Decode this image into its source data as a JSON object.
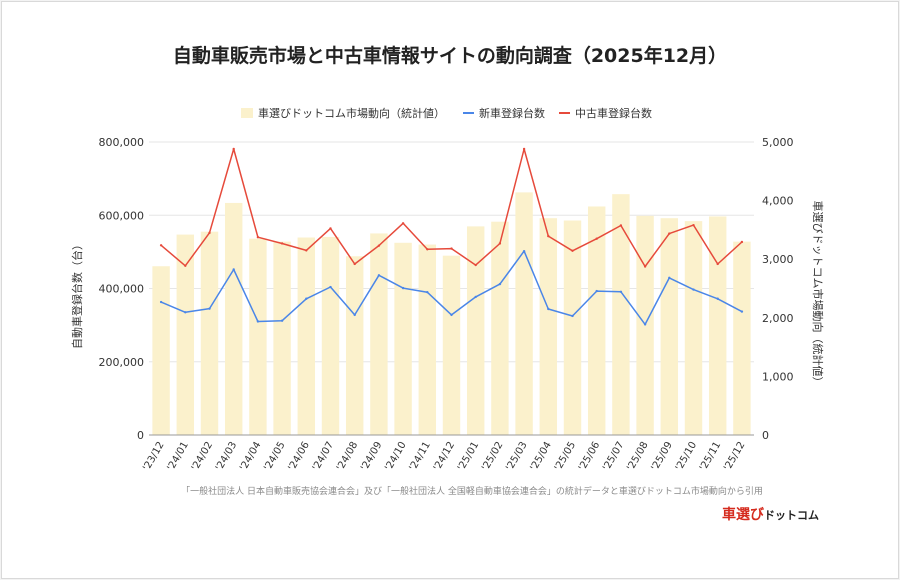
{
  "chart_data": {
    "type": "bar+line",
    "title": "自動車販売市場と中古車情報サイトの動向調査（2025年12月）",
    "categories": [
      "'23/12",
      "'24/01",
      "'24/02",
      "'24/03",
      "'24/04",
      "'24/05",
      "'24/06",
      "'24/07",
      "'24/08",
      "'24/09",
      "'24/10",
      "'24/11",
      "'24/12",
      "'25/01",
      "'25/02",
      "'25/03",
      "'25/04",
      "'25/05",
      "'25/06",
      "'25/07",
      "'25/08",
      "'25/09",
      "'25/10",
      "'25/11",
      "'25/12"
    ],
    "series": [
      {
        "name": "車選びドットコム市場動向（統計値）",
        "kind": "bar",
        "axis": "right",
        "color": "#fbf1cc",
        "values": [
          2880,
          3420,
          3470,
          3960,
          3350,
          3300,
          3370,
          3380,
          3050,
          3440,
          3280,
          3250,
          3060,
          3560,
          3640,
          4140,
          3700,
          3660,
          3900,
          4110,
          3740,
          3700,
          3650,
          3730,
          3300
        ]
      },
      {
        "name": "新車登録台数",
        "kind": "line",
        "axis": "left",
        "color": "#4a86e8",
        "values": [
          363000,
          335000,
          345000,
          452000,
          310000,
          312000,
          372000,
          404000,
          328000,
          436000,
          401000,
          390000,
          328000,
          377000,
          412000,
          502000,
          344000,
          325000,
          393000,
          391000,
          302000,
          429000,
          397000,
          372000,
          337000
        ]
      },
      {
        "name": "中古車登録台数",
        "kind": "line",
        "axis": "left",
        "color": "#e64a3b",
        "values": [
          518000,
          462000,
          552000,
          781000,
          540000,
          523000,
          504000,
          564000,
          467000,
          517000,
          578000,
          507000,
          509000,
          464000,
          523000,
          781000,
          543000,
          503000,
          536000,
          572000,
          460000,
          550000,
          573000,
          467000,
          527000
        ]
      }
    ],
    "y_left": {
      "title": "自動車登録台数（台）",
      "min": 0,
      "max": 800000,
      "ticks": [
        0,
        200000,
        400000,
        600000,
        800000
      ],
      "tick_labels": [
        "0",
        "200,000",
        "400,000",
        "600,000",
        "800,000"
      ]
    },
    "y_right": {
      "title": "車選びドットコム市場動向（統計値）",
      "min": 0,
      "max": 5000,
      "ticks": [
        0,
        1000,
        2000,
        3000,
        4000,
        5000
      ],
      "tick_labels": [
        "0",
        "1,000",
        "2,000",
        "3,000",
        "4,000",
        "5,000"
      ]
    },
    "grid": true,
    "legend_position": "top-center",
    "source_note": "「一般社団法人 日本自動車販売協会連合会」及び「一般社団法人 全国軽自動車協会連合会」の統計データと車選びドットコム市場動向から引用"
  },
  "logo": {
    "part1": "車選び",
    "part2": "ドットコム"
  },
  "colors": {
    "gridline": "#e6e6e6",
    "axis": "#999999",
    "logo_red": "#d52b1e"
  }
}
